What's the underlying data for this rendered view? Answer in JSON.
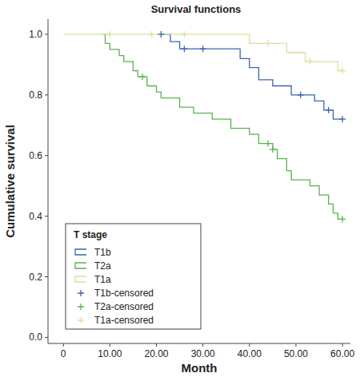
{
  "chart_data": {
    "type": "line",
    "title": "Survival functions",
    "x_label": "Month",
    "y_label": "Cumulative survival",
    "legend_title": "T stage",
    "legend": "bottom-left",
    "grid": false,
    "xlim": [
      -3.3,
      61.7
    ],
    "ylim": [
      -0.02,
      1.05
    ],
    "xticks": [
      0,
      {
        "value": 10,
        "label": "10.00"
      },
      {
        "value": 20,
        "label": "20.00"
      },
      {
        "value": 30,
        "label": "30.00"
      },
      {
        "value": 40,
        "label": "40.00"
      },
      {
        "value": 50,
        "label": "50.00"
      },
      {
        "value": 60,
        "label": "60.00"
      }
    ],
    "yticks": [
      {
        "value": 0,
        "label": "0.0"
      },
      {
        "value": 0.2,
        "label": "0.2"
      },
      {
        "value": 0.4,
        "label": "0.4"
      },
      {
        "value": 0.6,
        "label": "0.6"
      },
      {
        "value": 0.8,
        "label": "0.8"
      },
      {
        "value": 1,
        "label": "1.0"
      }
    ],
    "series": [
      {
        "name": "T1b",
        "color": "#3d64ad",
        "type": "line",
        "line_style": "step",
        "x": [
          21,
          23,
          25,
          38,
          40,
          42,
          45,
          49,
          54,
          56,
          58,
          60
        ],
        "values": [
          1.0,
          0.976,
          0.952,
          0.92,
          0.89,
          0.85,
          0.83,
          0.8,
          0.78,
          0.75,
          0.72,
          0.72
        ]
      },
      {
        "name": "T2a",
        "color": "#5ab34f",
        "type": "line",
        "line_style": "step",
        "x": [
          8.5,
          9,
          10,
          12,
          13,
          15,
          16,
          18,
          20,
          21,
          25,
          28,
          32,
          36,
          40,
          42,
          45,
          46,
          48,
          49,
          53,
          55,
          57,
          58,
          59,
          60
        ],
        "values": [
          1.0,
          0.97,
          0.95,
          0.93,
          0.91,
          0.88,
          0.86,
          0.83,
          0.81,
          0.79,
          0.76,
          0.74,
          0.72,
          0.69,
          0.67,
          0.64,
          0.62,
          0.59,
          0.55,
          0.52,
          0.5,
          0.47,
          0.44,
          0.41,
          0.39,
          0.39
        ]
      },
      {
        "name": "T1a",
        "color": "#d6e29c",
        "type": "line",
        "line_style": "step",
        "x": [
          0,
          40,
          48,
          52,
          59,
          60
        ],
        "values": [
          1.0,
          0.97,
          0.94,
          0.91,
          0.88,
          0.88
        ]
      },
      {
        "name": "T1b-censored",
        "color": "#3d64ad",
        "type": "scatter",
        "marker": "plus",
        "x": [
          21,
          26,
          30,
          51,
          57,
          60
        ],
        "values": [
          1.0,
          0.952,
          0.952,
          0.8,
          0.75,
          0.72
        ]
      },
      {
        "name": "T2a-censored",
        "color": "#5ab34f",
        "type": "scatter",
        "marker": "plus",
        "x": [
          17,
          44,
          45,
          60
        ],
        "values": [
          0.86,
          0.64,
          0.62,
          0.39
        ]
      },
      {
        "name": "T1a-censored",
        "color": "#d6e29c",
        "type": "scatter",
        "marker": "plus",
        "x": [
          10,
          19,
          26,
          44,
          53,
          60
        ],
        "values": [
          1.0,
          1.0,
          1.0,
          0.97,
          0.91,
          0.88
        ]
      }
    ]
  }
}
